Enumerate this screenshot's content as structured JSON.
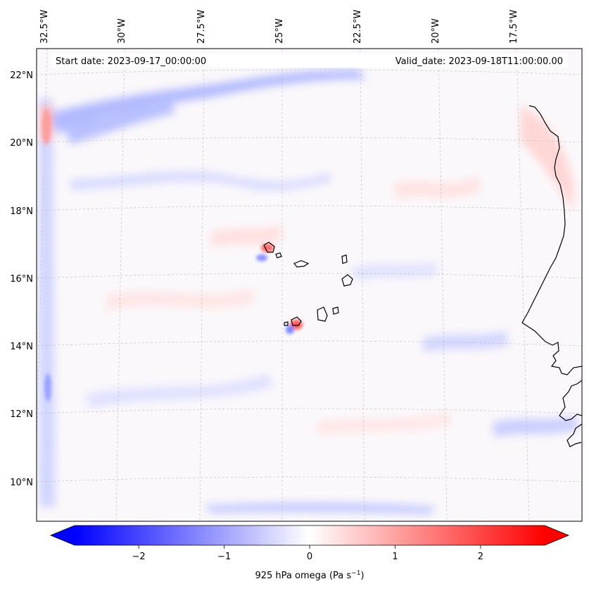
{
  "map": {
    "start_label": "Start date: 2023-09-17_00:00:00",
    "valid_label": "Valid_date: 2023-09-18T11:00:00.00",
    "lon_labels": [
      "32.5°W",
      "30°W",
      "27.5°W",
      "25°W",
      "22.5°W",
      "20°W",
      "17.5°W"
    ],
    "lat_labels": [
      "22°N",
      "20°N",
      "18°N",
      "16°N",
      "14°N",
      "12°N",
      "10°N"
    ],
    "lon_values": [
      -32.5,
      -30,
      -27.5,
      -25,
      -22.5,
      -20,
      -17.5
    ],
    "lat_values": [
      22,
      20,
      18,
      16,
      14,
      12,
      10
    ],
    "field": "925 hPa omega",
    "gridlines": true,
    "colormap": "bwr"
  },
  "colorbar": {
    "label": "925 hPa omega (Pa s$^{-1}$)",
    "label_text": "925 hPa omega (Pa s",
    "label_sup": "−1",
    "label_close": ")",
    "ticks": [
      "−2",
      "−1",
      "0",
      "1",
      "2"
    ],
    "tick_values": [
      -2,
      -1,
      0,
      1,
      2
    ],
    "range": [
      -2.75,
      2.75
    ],
    "extend": "both",
    "colors": {
      "min": "#0000ff",
      "mid": "#ffffff",
      "max": "#ff0000"
    }
  }
}
